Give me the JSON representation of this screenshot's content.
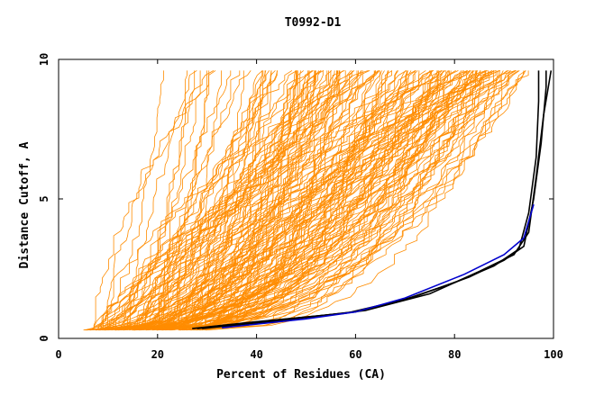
{
  "chart_data": {
    "type": "line",
    "title": "T0992-D1",
    "xlabel": "Percent of Residues (CA)",
    "ylabel": "Distance Cutoff, A",
    "xlim": [
      0,
      100
    ],
    "ylim": [
      0,
      10
    ],
    "x_ticks": [
      0,
      20,
      40,
      60,
      80,
      100
    ],
    "x_tick_labels": [
      "0",
      "20",
      "40",
      "60",
      "80",
      "100"
    ],
    "y_ticks": [
      0,
      5,
      10
    ],
    "y_tick_labels": [
      "0",
      "5",
      "10"
    ],
    "y_cap": 9.6,
    "background_series": {
      "count": 170,
      "color": "#ff8c00",
      "note": "many orange GDT curves of other models; start near y=0.3 between x≈5 and x≈30, rising to y≈9.6"
    },
    "highlight_series": [
      {
        "name": "model-black-1",
        "color": "#000000",
        "points": [
          [
            27,
            0.35
          ],
          [
            40,
            0.6
          ],
          [
            58,
            0.9
          ],
          [
            70,
            1.4
          ],
          [
            80,
            2.0
          ],
          [
            88,
            2.6
          ],
          [
            93,
            3.2
          ],
          [
            95,
            4.5
          ],
          [
            96.5,
            6.5
          ],
          [
            97,
            8.5
          ],
          [
            97,
            9.6
          ]
        ]
      },
      {
        "name": "model-black-2",
        "color": "#000000",
        "points": [
          [
            28,
            0.35
          ],
          [
            42,
            0.62
          ],
          [
            60,
            0.95
          ],
          [
            72,
            1.5
          ],
          [
            83,
            2.2
          ],
          [
            90,
            2.8
          ],
          [
            94,
            3.3
          ],
          [
            96,
            5.0
          ],
          [
            97.5,
            7.0
          ],
          [
            98.5,
            9.0
          ],
          [
            98.5,
            9.6
          ]
        ]
      },
      {
        "name": "model-black-3",
        "color": "#000000",
        "points": [
          [
            29,
            0.35
          ],
          [
            45,
            0.65
          ],
          [
            62,
            1.0
          ],
          [
            75,
            1.6
          ],
          [
            85,
            2.4
          ],
          [
            92,
            3.0
          ],
          [
            95,
            3.8
          ],
          [
            96.5,
            5.8
          ],
          [
            98,
            8.0
          ],
          [
            99.5,
            9.6
          ]
        ]
      },
      {
        "name": "model-blue",
        "color": "#0000cd",
        "points": [
          [
            33,
            0.38
          ],
          [
            50,
            0.7
          ],
          [
            60,
            0.95
          ],
          [
            70,
            1.45
          ],
          [
            82,
            2.3
          ],
          [
            90,
            3.0
          ],
          [
            94,
            3.6
          ],
          [
            96,
            4.8
          ]
        ]
      }
    ]
  }
}
